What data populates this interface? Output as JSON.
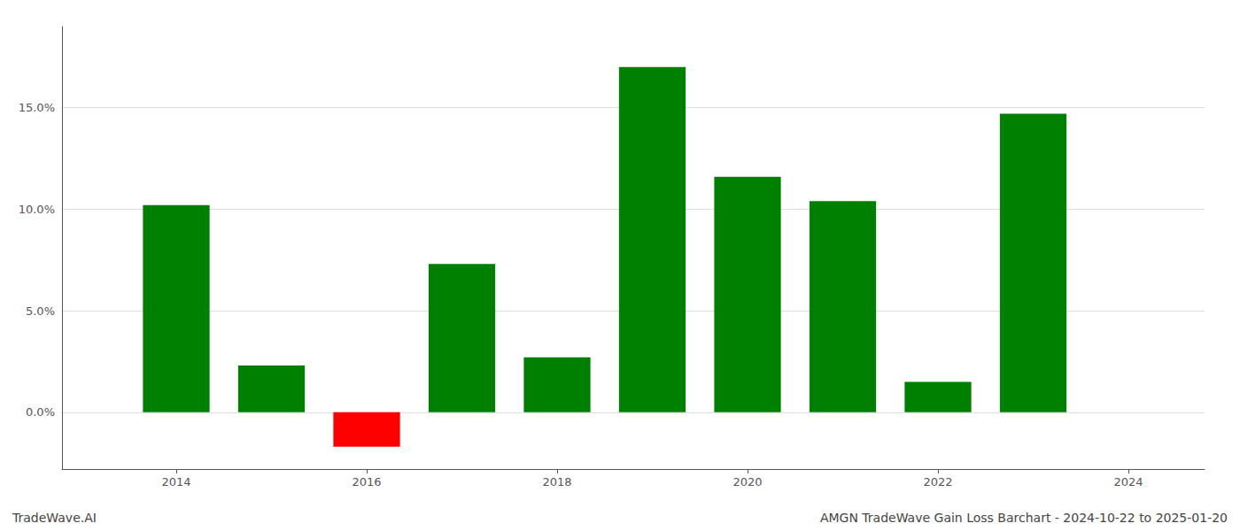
{
  "chart_data": {
    "type": "bar",
    "x": [
      2014,
      2015,
      2016,
      2017,
      2018,
      2019,
      2020,
      2021,
      2022,
      2023
    ],
    "values": [
      10.2,
      2.3,
      -1.7,
      7.3,
      2.7,
      17.0,
      11.6,
      10.4,
      1.5,
      14.7
    ],
    "colors": [
      "#008000",
      "#008000",
      "#ff0000",
      "#008000",
      "#008000",
      "#008000",
      "#008000",
      "#008000",
      "#008000",
      "#008000"
    ],
    "xlim": [
      2012.8,
      2024.8
    ],
    "xticks": [
      2014,
      2016,
      2018,
      2020,
      2022,
      2024
    ],
    "ylim": [
      -2.8,
      19.0
    ],
    "yticks": [
      {
        "value": 0.0,
        "label": "0.0%"
      },
      {
        "value": 5.0,
        "label": "5.0%"
      },
      {
        "value": 10.0,
        "label": "10.0%"
      },
      {
        "value": 15.0,
        "label": "15.0%"
      }
    ],
    "grid": true,
    "annotations": [
      "TradeWave.AI",
      "AMGN TradeWave Gain Loss Barchart - 2024-10-22 to 2025-01-20"
    ]
  }
}
